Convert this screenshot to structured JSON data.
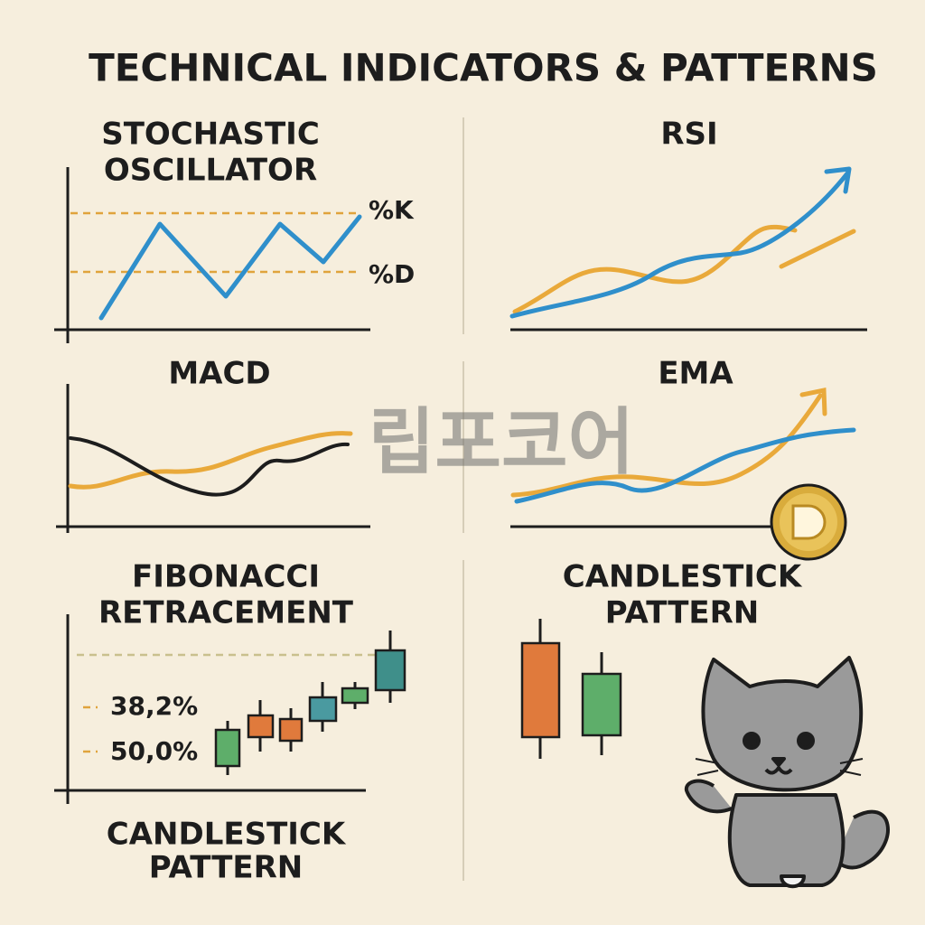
{
  "header": {
    "title": "TECHNICAL INDICATORS & PATTERNS"
  },
  "panels": [
    {
      "title": [
        "STOCHASTIC",
        "OSCILLATOR"
      ],
      "labels": [
        "%K",
        "%D"
      ]
    },
    {
      "title": [
        "RSI"
      ]
    },
    {
      "title": [
        "MACD"
      ]
    },
    {
      "title": [
        "EMA"
      ]
    },
    {
      "title": [
        "FIBONACCI",
        "RETRACEMENT"
      ],
      "labels": [
        "38,2%",
        "50,0%"
      ]
    },
    {
      "title": [
        "CANDLESTICK",
        "PATTERN"
      ]
    }
  ],
  "footer": {
    "title": [
      "CANDLESTICK",
      "PATTERN"
    ]
  },
  "watermark": "립포코어"
}
